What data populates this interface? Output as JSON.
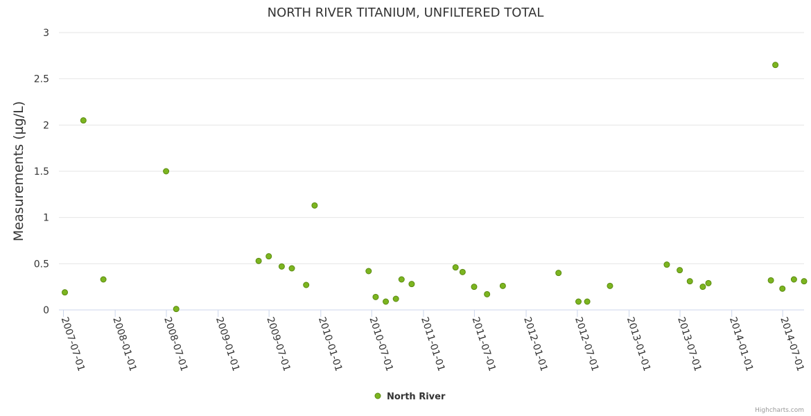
{
  "chart_data": {
    "type": "scatter",
    "title": "NORTH RIVER TITANIUM, UNFILTERED TOTAL",
    "ylabel": "Measurements (µg/L)",
    "xlabel": "",
    "ylim": [
      0,
      3
    ],
    "yticks": [
      "0",
      "0.5",
      "1",
      "1.5",
      "2",
      "2.5",
      "3"
    ],
    "xticks": [
      "2007-07-01",
      "2008-01-01",
      "2008-07-01",
      "2009-01-01",
      "2009-07-01",
      "2010-01-01",
      "2010-07-01",
      "2011-01-01",
      "2011-07-01",
      "2012-01-01",
      "2012-07-01",
      "2013-01-01",
      "2013-07-01",
      "2014-01-01",
      "2014-07-01"
    ],
    "xlim": [
      "2007-06-15",
      "2014-09-15"
    ],
    "grid": "horizontal",
    "legend_position": "bottom-center",
    "marker_color": "#7cb520",
    "series": [
      {
        "name": "North River",
        "points": [
          [
            "2007-07-06",
            0.19
          ],
          [
            "2007-09-10",
            2.05
          ],
          [
            "2007-11-20",
            0.33
          ],
          [
            "2008-06-30",
            1.5
          ],
          [
            "2008-08-05",
            0.01
          ],
          [
            "2009-05-25",
            0.53
          ],
          [
            "2009-06-30",
            0.58
          ],
          [
            "2009-08-15",
            0.47
          ],
          [
            "2009-09-20",
            0.45
          ],
          [
            "2009-11-10",
            0.27
          ],
          [
            "2009-12-10",
            1.13
          ],
          [
            "2010-06-20",
            0.42
          ],
          [
            "2010-07-15",
            0.14
          ],
          [
            "2010-08-20",
            0.09
          ],
          [
            "2010-09-25",
            0.12
          ],
          [
            "2010-10-15",
            0.33
          ],
          [
            "2010-11-20",
            0.28
          ],
          [
            "2011-04-25",
            0.46
          ],
          [
            "2011-05-20",
            0.41
          ],
          [
            "2011-06-30",
            0.25
          ],
          [
            "2011-08-15",
            0.17
          ],
          [
            "2011-10-10",
            0.26
          ],
          [
            "2012-04-25",
            0.4
          ],
          [
            "2012-07-05",
            0.09
          ],
          [
            "2012-08-05",
            0.09
          ],
          [
            "2012-10-25",
            0.26
          ],
          [
            "2013-05-15",
            0.49
          ],
          [
            "2013-06-30",
            0.43
          ],
          [
            "2013-08-05",
            0.31
          ],
          [
            "2013-09-20",
            0.25
          ],
          [
            "2013-10-10",
            0.29
          ],
          [
            "2014-05-20",
            0.32
          ],
          [
            "2014-06-05",
            2.65
          ],
          [
            "2014-06-30",
            0.23
          ],
          [
            "2014-08-10",
            0.33
          ],
          [
            "2014-09-15",
            0.31
          ]
        ]
      }
    ]
  },
  "credits": "Highcharts.com"
}
